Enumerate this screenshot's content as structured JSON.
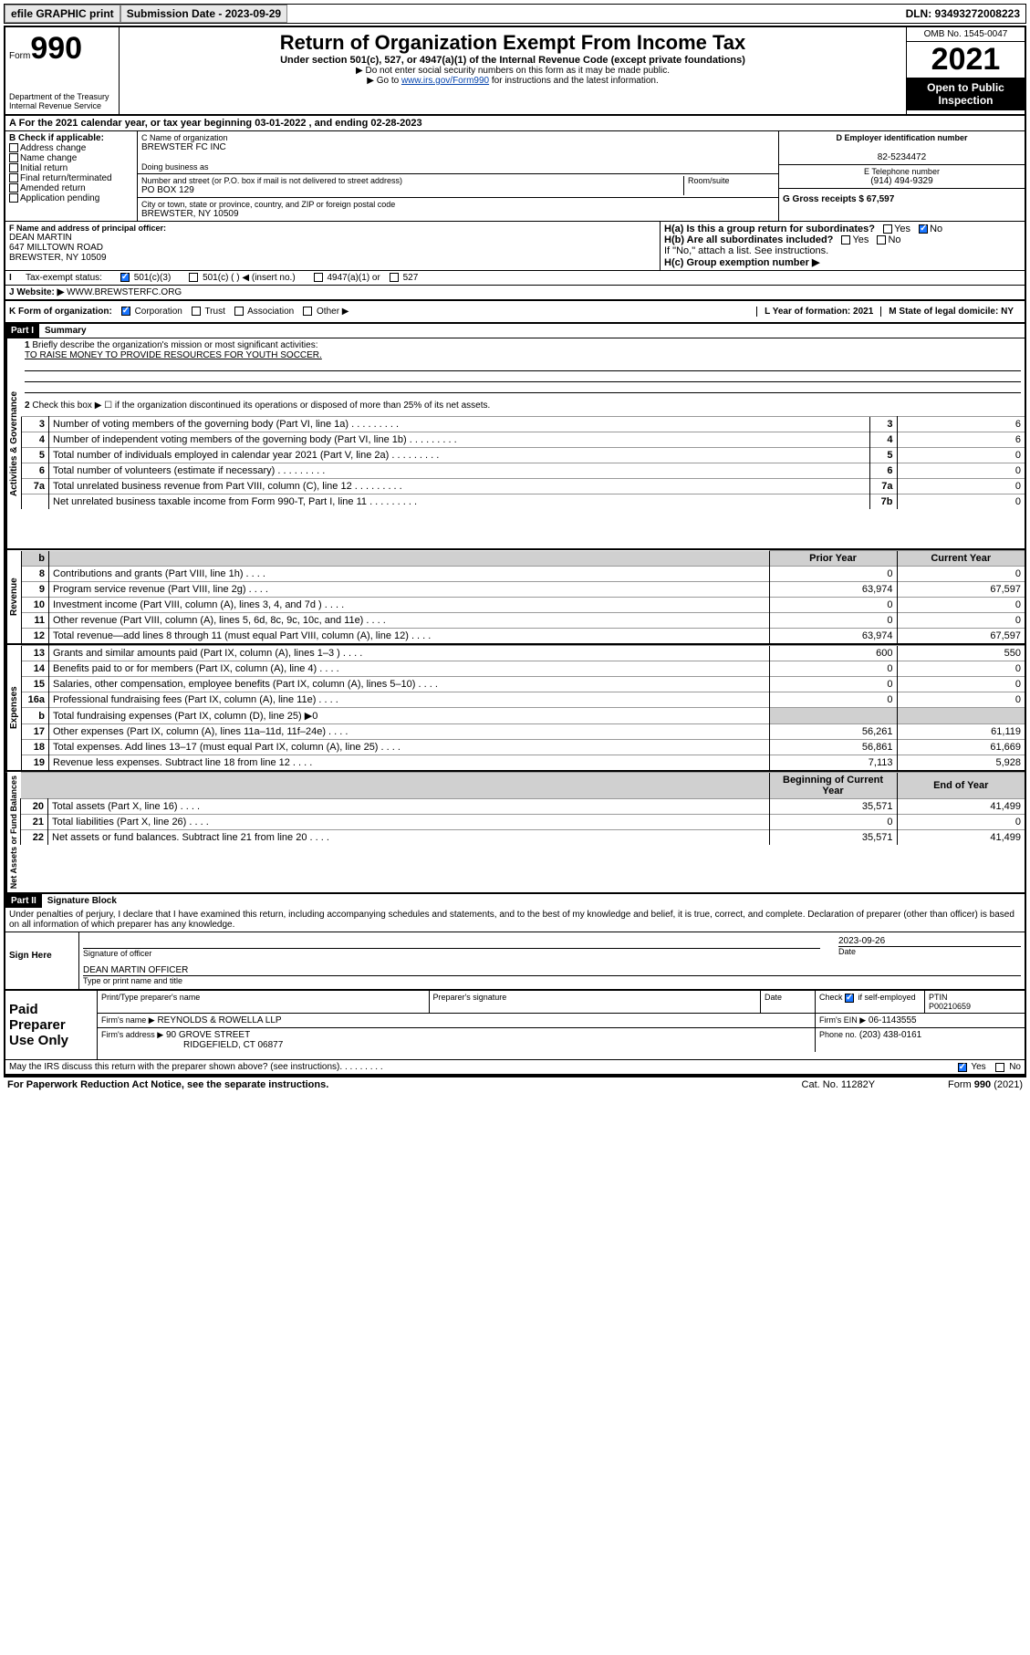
{
  "topbar": {
    "efile": "efile GRAPHIC print",
    "sub_label": "Submission Date - 2023-09-29",
    "dln": "DLN: 93493272008223"
  },
  "header": {
    "form_label": "Form",
    "form_num": "990",
    "title": "Return of Organization Exempt From Income Tax",
    "subtitle": "Under section 501(c), 527, or 4947(a)(1) of the Internal Revenue Code (except private foundations)",
    "instr1": "▶ Do not enter social security numbers on this form as it may be made public.",
    "instr2_pre": "▶ Go to ",
    "instr2_link": "www.irs.gov/Form990",
    "instr2_post": " for instructions and the latest information.",
    "dept": "Department of the Treasury Internal Revenue Service",
    "omb": "OMB No. 1545-0047",
    "year": "2021",
    "open": "Open to Public Inspection"
  },
  "period": "For the 2021 calendar year, or tax year beginning 03-01-2022  , and ending 02-28-2023",
  "section_b": {
    "label": "B Check if applicable:",
    "opts": [
      "Address change",
      "Name change",
      "Initial return",
      "Final return/terminated",
      "Amended return",
      "Application pending"
    ],
    "c_label": "C Name of organization",
    "org": "BREWSTER FC INC",
    "dba": "Doing business as",
    "addr_label": "Number and street (or P.O. box if mail is not delivered to street address)",
    "room": "Room/suite",
    "addr": "PO BOX 129",
    "city_label": "City or town, state or province, country, and ZIP or foreign postal code",
    "city": "BREWSTER, NY  10509",
    "d_label": "D Employer identification number",
    "ein": "82-5234472",
    "e_label": "E Telephone number",
    "phone": "(914) 494-9329",
    "g_label": "G Gross receipts $ 67,597"
  },
  "section_f": {
    "f_label": "F Name and address of principal officer:",
    "name": "DEAN MARTIN",
    "street": "647 MILLTOWN ROAD",
    "citystate": "BREWSTER, NY  10509",
    "ha": "H(a)  Is this a group return for subordinates?",
    "hb": "H(b)  Are all subordinates included?",
    "hb_note": "If \"No,\" attach a list. See instructions.",
    "hc": "H(c)  Group exemption number ▶",
    "yes": "Yes",
    "no": "No"
  },
  "section_i": {
    "label": "Tax-exempt status:",
    "o1": "501(c)(3)",
    "o2": "501(c) (  ) ◀ (insert no.)",
    "o3": "4947(a)(1) or",
    "o4": "527"
  },
  "section_j": {
    "label": "Website: ▶",
    "val": "WWW.BREWSTERFC.ORG"
  },
  "section_k": {
    "label": "K Form of organization:",
    "opts": [
      "Corporation",
      "Trust",
      "Association",
      "Other ▶"
    ],
    "l": "L Year of formation: 2021",
    "m": "M State of legal domicile: NY"
  },
  "part1": {
    "header": "Part I",
    "title": "Summary",
    "line1": "Briefly describe the organization's mission or most significant activities:",
    "mission": "TO RAISE MONEY TO PROVIDE RESOURCES FOR YOUTH SOCCER.",
    "line2": "Check this box ▶ ☐  if the organization discontinued its operations or disposed of more than 25% of its net assets.",
    "col_prior": "Prior Year",
    "col_curr": "Current Year",
    "col_beg": "Beginning of Current Year",
    "col_end": "End of Year",
    "sidebars": [
      "Activities & Governance",
      "Revenue",
      "Expenses",
      "Net Assets or Fund Balances"
    ],
    "rows_gov": [
      {
        "n": "3",
        "t": "Number of voting members of the governing body (Part VI, line 1a)",
        "r": "3",
        "v": "6"
      },
      {
        "n": "4",
        "t": "Number of independent voting members of the governing body (Part VI, line 1b)",
        "r": "4",
        "v": "6"
      },
      {
        "n": "5",
        "t": "Total number of individuals employed in calendar year 2021 (Part V, line 2a)",
        "r": "5",
        "v": "0"
      },
      {
        "n": "6",
        "t": "Total number of volunteers (estimate if necessary)",
        "r": "6",
        "v": "0"
      },
      {
        "n": "7a",
        "t": "Total unrelated business revenue from Part VIII, column (C), line 12",
        "r": "7a",
        "v": "0"
      },
      {
        "n": "",
        "t": "Net unrelated business taxable income from Form 990-T, Part I, line 11",
        "r": "7b",
        "v": "0"
      }
    ],
    "rows_rev": [
      {
        "n": "8",
        "t": "Contributions and grants (Part VIII, line 1h)",
        "p": "0",
        "c": "0"
      },
      {
        "n": "9",
        "t": "Program service revenue (Part VIII, line 2g)",
        "p": "63,974",
        "c": "67,597"
      },
      {
        "n": "10",
        "t": "Investment income (Part VIII, column (A), lines 3, 4, and 7d )",
        "p": "0",
        "c": "0"
      },
      {
        "n": "11",
        "t": "Other revenue (Part VIII, column (A), lines 5, 6d, 8c, 9c, 10c, and 11e)",
        "p": "0",
        "c": "0"
      },
      {
        "n": "12",
        "t": "Total revenue—add lines 8 through 11 (must equal Part VIII, column (A), line 12)",
        "p": "63,974",
        "c": "67,597"
      }
    ],
    "rows_exp": [
      {
        "n": "13",
        "t": "Grants and similar amounts paid (Part IX, column (A), lines 1–3 )",
        "p": "600",
        "c": "550"
      },
      {
        "n": "14",
        "t": "Benefits paid to or for members (Part IX, column (A), line 4)",
        "p": "0",
        "c": "0"
      },
      {
        "n": "15",
        "t": "Salaries, other compensation, employee benefits (Part IX, column (A), lines 5–10)",
        "p": "0",
        "c": "0"
      },
      {
        "n": "16a",
        "t": "Professional fundraising fees (Part IX, column (A), line 11e)",
        "p": "0",
        "c": "0"
      },
      {
        "n": "b",
        "t": "Total fundraising expenses (Part IX, column (D), line 25) ▶0",
        "p": "",
        "c": "",
        "grey": true
      },
      {
        "n": "17",
        "t": "Other expenses (Part IX, column (A), lines 11a–11d, 11f–24e)",
        "p": "56,261",
        "c": "61,119"
      },
      {
        "n": "18",
        "t": "Total expenses. Add lines 13–17 (must equal Part IX, column (A), line 25)",
        "p": "56,861",
        "c": "61,669"
      },
      {
        "n": "19",
        "t": "Revenue less expenses. Subtract line 18 from line 12",
        "p": "7,113",
        "c": "5,928"
      }
    ],
    "rows_net": [
      {
        "n": "20",
        "t": "Total assets (Part X, line 16)",
        "p": "35,571",
        "c": "41,499"
      },
      {
        "n": "21",
        "t": "Total liabilities (Part X, line 26)",
        "p": "0",
        "c": "0"
      },
      {
        "n": "22",
        "t": "Net assets or fund balances. Subtract line 21 from line 20",
        "p": "35,571",
        "c": "41,499"
      }
    ]
  },
  "part2": {
    "header": "Part II",
    "title": "Signature Block",
    "decl": "Under penalties of perjury, I declare that I have examined this return, including accompanying schedules and statements, and to the best of my knowledge and belief, it is true, correct, and complete. Declaration of preparer (other than officer) is based on all information of which preparer has any knowledge.",
    "sign_here": "Sign Here",
    "sig_officer": "Signature of officer",
    "date": "Date",
    "sig_date": "2023-09-26",
    "officer": "DEAN MARTIN  OFFICER",
    "type_name": "Type or print name and title",
    "paid": "Paid Preparer Use Only",
    "prep_name": "Print/Type preparer's name",
    "prep_sig": "Preparer's signature",
    "check_self": "Check ☑ if self-employed",
    "ptin_l": "PTIN",
    "ptin": "P00210659",
    "firm_name_l": "Firm's name    ▶",
    "firm_name": "REYNOLDS & ROWELLA LLP",
    "firm_ein_l": "Firm's EIN ▶",
    "firm_ein": "06-1143555",
    "firm_addr_l": "Firm's address ▶",
    "firm_addr": "90 GROVE STREET",
    "firm_city": "RIDGEFIELD, CT  06877",
    "phone_l": "Phone no.",
    "phone": "(203) 438-0161",
    "discuss": "May the IRS discuss this return with the preparer shown above? (see instructions)"
  },
  "footer": {
    "left": "For Paperwork Reduction Act Notice, see the separate instructions.",
    "mid": "Cat. No. 11282Y",
    "right": "Form 990 (2021)"
  }
}
